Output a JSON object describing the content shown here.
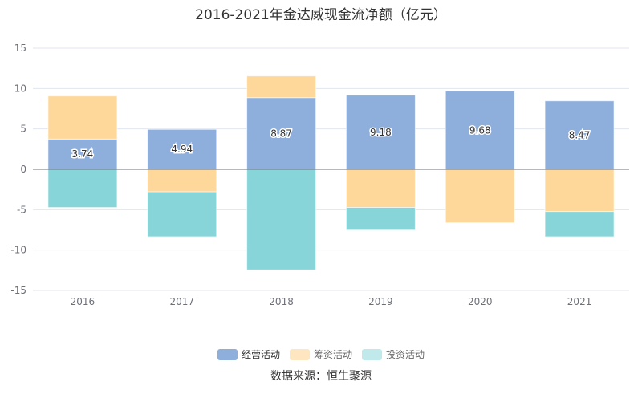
{
  "chart_data": {
    "type": "bar",
    "stacked": true,
    "title": "2016-2021年金达威现金流净额（亿元）",
    "categories": [
      "2016",
      "2017",
      "2018",
      "2019",
      "2020",
      "2021"
    ],
    "series": [
      {
        "name": "经营活动",
        "color": "#8eaedb",
        "values": [
          3.74,
          4.94,
          8.87,
          9.18,
          9.68,
          8.47
        ],
        "show_labels": true
      },
      {
        "name": "筹资活动",
        "color": "#fed89b",
        "values": [
          5.33,
          -2.79,
          2.68,
          -4.72,
          -6.62,
          -5.23
        ]
      },
      {
        "name": "投资活动",
        "color": "#88d5d9",
        "values": [
          -4.73,
          -5.55,
          -12.45,
          -2.8,
          0,
          -3.11
        ]
      }
    ],
    "ylim": [
      -15,
      15
    ],
    "yticks": [
      15,
      10,
      5,
      0,
      -5,
      -10,
      -15
    ],
    "grid": true,
    "legend_position": "bottom",
    "xlabel": "",
    "ylabel": ""
  },
  "source": "数据来源：恒生聚源"
}
